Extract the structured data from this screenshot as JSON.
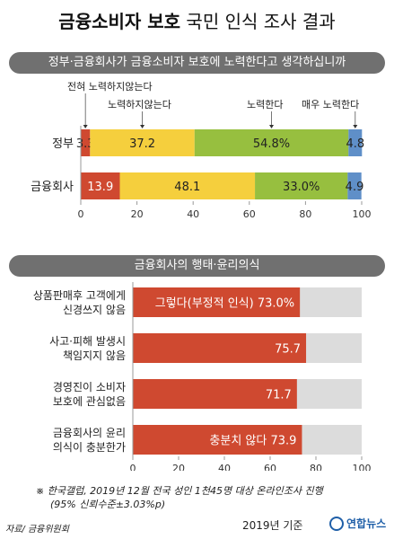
{
  "header": {
    "title_bold": "금융소비자 보호",
    "title_rest": "국민 인식 조사 결과"
  },
  "colors": {
    "banner": "#707070",
    "red": "#cf4930",
    "yellow": "#f5cf3d",
    "green": "#97bf3f",
    "blue": "#5f8fc8",
    "track": "#dcdcdc"
  },
  "chart_data": [
    {
      "type": "bar",
      "orientation": "horizontal",
      "stacked": true,
      "title": "정부·금융회사가 금융소비자 보호에 노력한다고 생각하십니까",
      "categories": [
        "정부",
        "금융회사"
      ],
      "series": [
        {
          "name": "전혀 노력하지않는다",
          "color": "#cf4930",
          "values": [
            3.3,
            13.9
          ]
        },
        {
          "name": "노력하지않는다",
          "color": "#f5cf3d",
          "values": [
            37.2,
            48.1
          ]
        },
        {
          "name": "노력한다",
          "color": "#97bf3f",
          "values": [
            54.8,
            33.0
          ]
        },
        {
          "name": "매우 노력한다",
          "color": "#5f8fc8",
          "values": [
            4.8,
            4.9
          ]
        }
      ],
      "value_labels": [
        [
          "3.3",
          "37.2",
          "54.8%",
          "4.8"
        ],
        [
          "13.9",
          "48.1",
          "33.0%",
          "4.9"
        ]
      ],
      "xlim": [
        0,
        100
      ],
      "xticks": [
        0,
        20,
        40,
        60,
        80,
        100
      ],
      "legend": "callouts-above"
    },
    {
      "type": "bar",
      "orientation": "horizontal",
      "title": "금융회사의 행태·윤리의식",
      "categories": [
        [
          "상품판매후 고객에게",
          "신경쓰지 않음"
        ],
        [
          "사고·피해 발생시",
          "책임지지 않음"
        ],
        [
          "경영진이 소비자",
          "보호에 관심없음"
        ],
        [
          "금융회사의 윤리",
          "의식이 충분한가"
        ]
      ],
      "values": [
        73.0,
        75.7,
        71.7,
        73.9
      ],
      "value_labels": [
        "그렇다(부정적 인식) 73.0%",
        "75.7",
        "71.7",
        "충분치 않다 73.9"
      ],
      "xlim": [
        0,
        100
      ],
      "xticks": [
        0,
        20,
        40,
        60,
        80,
        100
      ]
    }
  ],
  "footer": {
    "note_line1": "※ 한국갤럽, 2019년 12월 전국 성인 1천45명 대상 온라인조사 진행",
    "note_line2": "(95% 신뢰수준±3.03%p)",
    "source": "자료/ 금융위원회",
    "year_base": "2019년 기준",
    "logo_text": "연합뉴스"
  }
}
